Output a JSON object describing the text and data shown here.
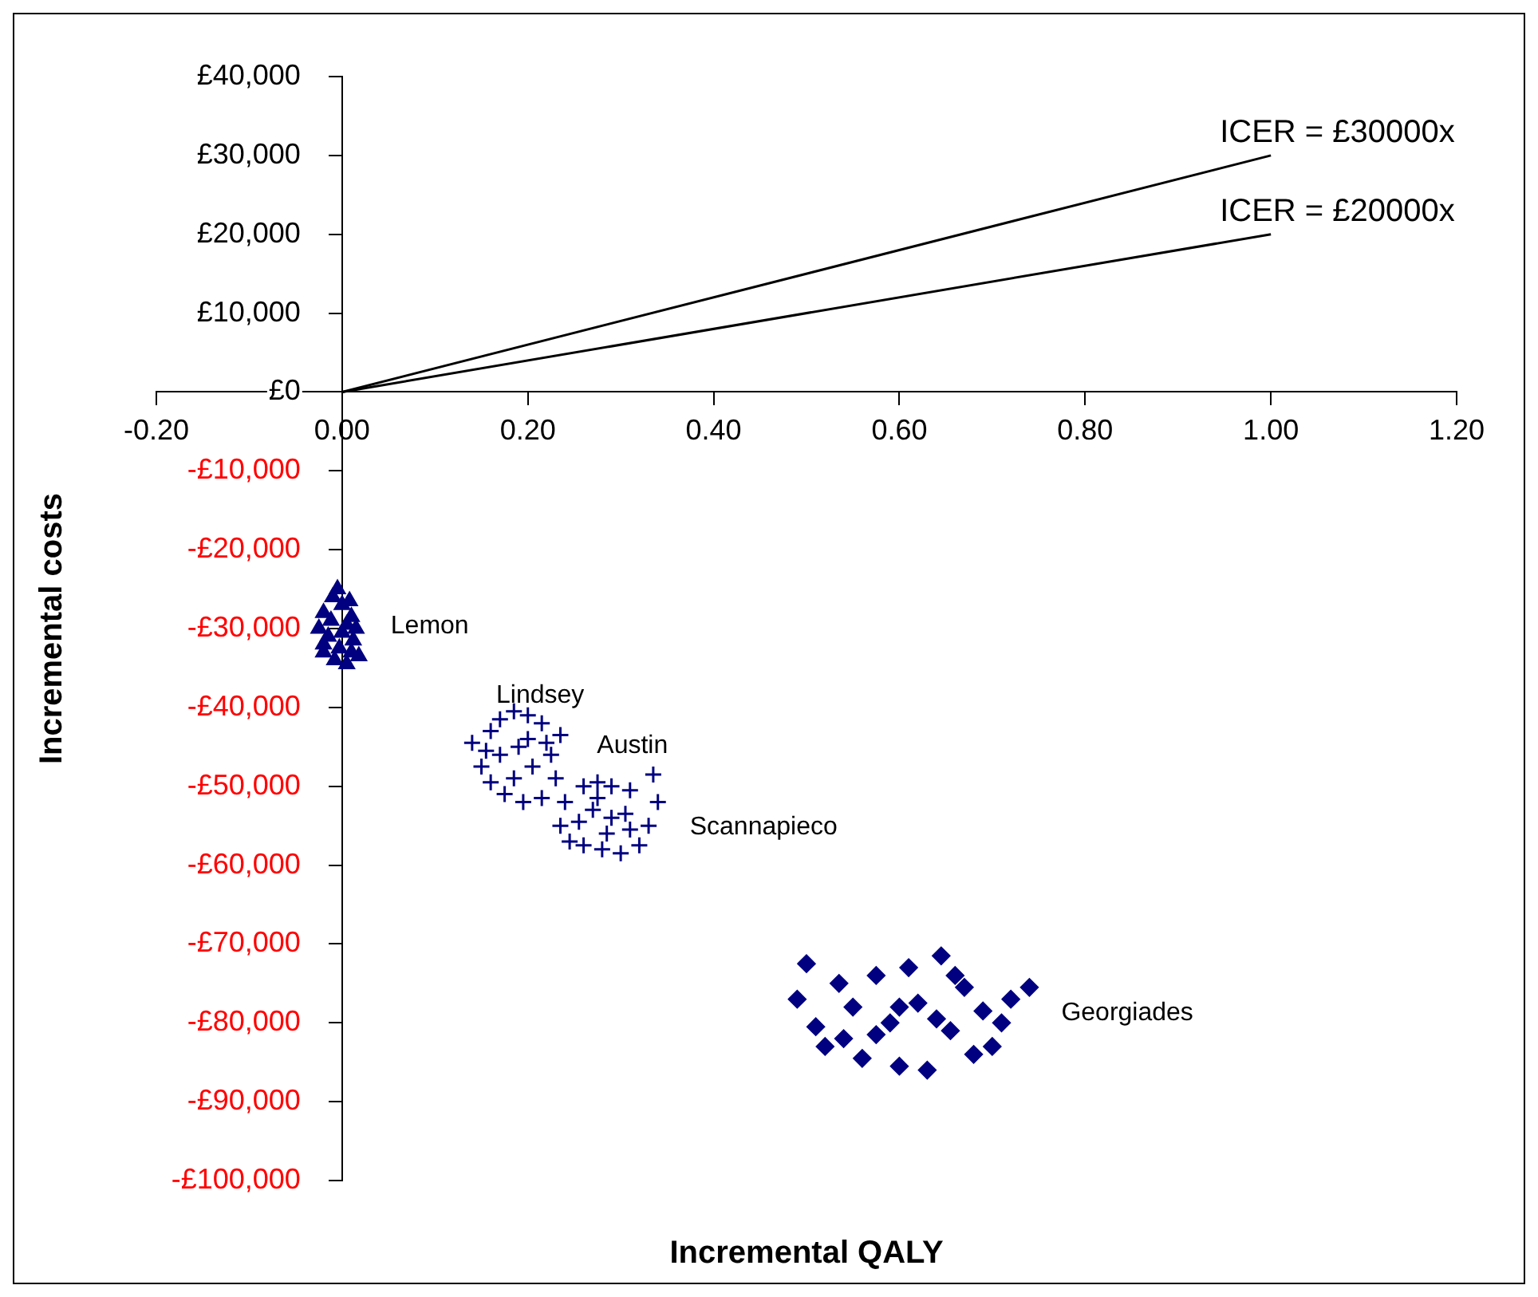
{
  "chart_data": {
    "type": "scatter",
    "xlabel": "Incremental QALY",
    "ylabel": "Incremental costs",
    "xlim": [
      -0.2,
      1.2
    ],
    "xticks": [
      {
        "value": -0.2,
        "label": "-0.20"
      },
      {
        "value": 0,
        "label": "0.00"
      },
      {
        "value": 0.2,
        "label": "0.20"
      },
      {
        "value": 0.4,
        "label": "0.40"
      },
      {
        "value": 0.6,
        "label": "0.60"
      },
      {
        "value": 0.8,
        "label": "0.80"
      },
      {
        "value": 1,
        "label": "1.00"
      },
      {
        "value": 1.2,
        "label": "1.20"
      }
    ],
    "ylim": [
      -100000,
      40000
    ],
    "yticks": [
      {
        "value": -100000,
        "label": "-£100,000"
      },
      {
        "value": -90000,
        "label": "-£90,000"
      },
      {
        "value": -80000,
        "label": "-£80,000"
      },
      {
        "value": -70000,
        "label": "-£70,000"
      },
      {
        "value": -60000,
        "label": "-£60,000"
      },
      {
        "value": -50000,
        "label": "-£50,000"
      },
      {
        "value": -40000,
        "label": "-£40,000"
      },
      {
        "value": -30000,
        "label": "-£30,000"
      },
      {
        "value": -20000,
        "label": "-£20,000"
      },
      {
        "value": -10000,
        "label": "-£10,000"
      },
      {
        "value": 0,
        "label": "£0"
      },
      {
        "value": 10000,
        "label": "£10,000"
      },
      {
        "value": 20000,
        "label": "£20,000"
      },
      {
        "value": 30000,
        "label": "£30,000"
      },
      {
        "value": 40000,
        "label": "£40,000"
      }
    ],
    "grid": false,
    "legend": false,
    "series": [
      {
        "type": "line",
        "name": "ICER = £30000x",
        "color": "#000000",
        "marker": "none",
        "x": [
          0,
          1
        ],
        "values": [
          0,
          30000
        ]
      },
      {
        "type": "line",
        "name": "ICER = £20000x",
        "color": "#000000",
        "marker": "none",
        "x": [
          0,
          1
        ],
        "values": [
          0,
          20000
        ]
      },
      {
        "name": "Lemon",
        "color": "#000080",
        "marker": "triangle",
        "x": [
          -0.02,
          -0.01,
          -0.005,
          0,
          0.01,
          -0.025,
          -0.015,
          0,
          0.012,
          0.018,
          -0.02,
          -0.008,
          0.005,
          0.01,
          -0.012,
          0.005,
          -0.02,
          0.015,
          -0.003,
          0.008
        ],
        "values": [
          -28000,
          -26000,
          -25000,
          -27000,
          -28500,
          -30000,
          -31000,
          -30500,
          -31500,
          -33500,
          -33000,
          -34000,
          -34500,
          -33000,
          -29000,
          -29500,
          -32000,
          -30000,
          -32500,
          -26500
        ]
      },
      {
        "name": "Lindsey",
        "color": "#000080",
        "marker": "cross",
        "x": [
          0.14,
          0.15,
          0.16,
          0.17,
          0.185,
          0.2,
          0.215,
          0.235,
          0.225,
          0.23,
          0.215,
          0.195,
          0.175,
          0.16,
          0.17,
          0.19,
          0.205,
          0.185,
          0.2,
          0.22,
          0.155
        ],
        "values": [
          -44500,
          -47500,
          -43000,
          -41500,
          -40500,
          -41000,
          -42000,
          -43500,
          -46000,
          -49000,
          -51500,
          -52000,
          -51000,
          -49500,
          -46000,
          -45000,
          -47500,
          -49000,
          -44000,
          -44500,
          -45500
        ]
      },
      {
        "name": "Austin",
        "color": "#000080",
        "marker": "cross",
        "x": [
          0.24,
          0.26,
          0.275,
          0.29,
          0.31,
          0.335,
          0.27,
          0.29,
          0.305,
          0.255,
          0.275
        ],
        "values": [
          -52000,
          -50000,
          -49500,
          -50000,
          -50500,
          -48500,
          -53000,
          -54000,
          -53500,
          -54500,
          -51500
        ]
      },
      {
        "name": "Scannapieco",
        "color": "#000080",
        "marker": "cross",
        "x": [
          0.235,
          0.245,
          0.34,
          0.33,
          0.32,
          0.3,
          0.28,
          0.26,
          0.285,
          0.31
        ],
        "values": [
          -55000,
          -57000,
          -52000,
          -55000,
          -57500,
          -58500,
          -58000,
          -57500,
          -56000,
          -55500
        ]
      },
      {
        "name": "Georgiades",
        "color": "#000080",
        "marker": "diamond",
        "x": [
          0.49,
          0.5,
          0.51,
          0.52,
          0.535,
          0.55,
          0.56,
          0.575,
          0.59,
          0.6,
          0.61,
          0.62,
          0.63,
          0.645,
          0.655,
          0.67,
          0.68,
          0.69,
          0.7,
          0.71,
          0.72,
          0.74,
          0.575,
          0.6,
          0.64,
          0.54,
          0.66
        ],
        "values": [
          -77000,
          -72500,
          -80500,
          -83000,
          -75000,
          -78000,
          -84500,
          -74000,
          -80000,
          -85500,
          -73000,
          -77500,
          -86000,
          -71500,
          -81000,
          -75500,
          -84000,
          -78500,
          -83000,
          -80000,
          -77000,
          -75500,
          -81500,
          -78000,
          -79500,
          -82000,
          -74000
        ]
      }
    ]
  }
}
